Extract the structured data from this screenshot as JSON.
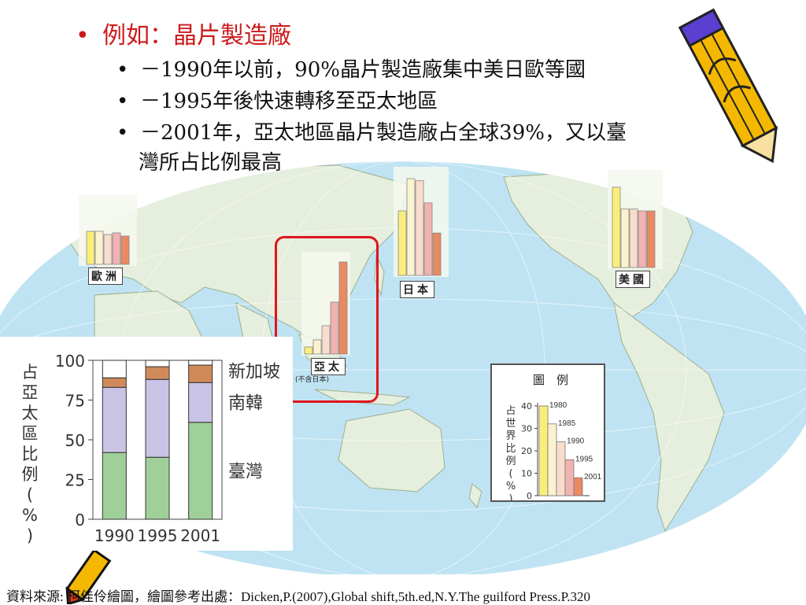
{
  "bullets": {
    "main": "例如：晶片製造廠",
    "sub1": "－1990年以前，90%晶片製造廠集中美日歐等國",
    "sub2": "－1995年後快速轉移至亞太地區",
    "sub3_line1": "－2001年，亞太地區晶片製造廠占全球39%，又以臺",
    "sub3_line2": "灣所占比例最高"
  },
  "bullet_symbol": "•",
  "region_labels": {
    "europe": "歐洲",
    "japan": "日本",
    "usa": "美國",
    "asia_pacific": "亞太",
    "asia_pacific_note": "(不含日本)"
  },
  "source": "資料來源: 柯佳伶繪圖，繪圖參考出處：Dicken,P.(2007),Global shift,5th.ed,N.Y.The guilford Press.P.320",
  "colors": {
    "year_1980": "#f9ee7a",
    "year_1985": "#fbf3cf",
    "year_1990": "#f8dccc",
    "year_1995": "#f1b2b2",
    "year_2001": "#e98a63",
    "taiwan": "#9fd09a",
    "korea": "#c9c4e6",
    "singapore": "#d08a5a",
    "other": "#ffffff",
    "red_title": "#cc1a1a",
    "ocean": "#bfe3f2",
    "land": "#e6eedd"
  },
  "chart_data": [
    {
      "type": "bar",
      "region": "歐洲",
      "categories": [
        "1980",
        "1985",
        "1990",
        "1995",
        "2001"
      ],
      "values": [
        21,
        21,
        19,
        20,
        18
      ],
      "ylim": [
        0,
        40
      ]
    },
    {
      "type": "bar",
      "region": "日本",
      "categories": [
        "1980",
        "1985",
        "1990",
        "1995",
        "2001"
      ],
      "values": [
        32,
        48,
        47,
        36,
        21
      ],
      "ylim": [
        0,
        50
      ]
    },
    {
      "type": "bar",
      "region": "美國",
      "categories": [
        "1980",
        "1985",
        "1990",
        "1995",
        "2001"
      ],
      "values": [
        44,
        32,
        32,
        31,
        31
      ],
      "ylim": [
        0,
        50
      ]
    },
    {
      "type": "bar",
      "region": "亞太(不含日本)",
      "categories": [
        "1980",
        "1985",
        "1990",
        "1995",
        "2001"
      ],
      "values": [
        3,
        6,
        12,
        22,
        39
      ],
      "ylim": [
        0,
        40
      ]
    },
    {
      "type": "bar",
      "stacked": true,
      "ylabel": "占亞太區比例(%)",
      "categories": [
        "1990",
        "1995",
        "2001"
      ],
      "yticks": [
        "0",
        "25",
        "50",
        "75",
        "100"
      ],
      "ylim": [
        0,
        100
      ],
      "series": [
        {
          "name": "臺灣",
          "values": [
            42,
            39,
            61
          ]
        },
        {
          "name": "南韓",
          "values": [
            41,
            49,
            25
          ]
        },
        {
          "name": "新加坡",
          "values": [
            6,
            8,
            11
          ]
        },
        {
          "name": "",
          "values": [
            11,
            4,
            3
          ]
        }
      ]
    },
    {
      "type": "bar",
      "title": "圖　例",
      "ylabel": "占世界比例(%)",
      "categories": [
        "1980",
        "1985",
        "1990",
        "1995",
        "2001"
      ],
      "values": [
        40,
        32,
        24,
        16,
        8
      ],
      "yticks": [
        "0",
        "10",
        "20",
        "30",
        "40"
      ],
      "ylim": [
        0,
        40
      ]
    }
  ]
}
